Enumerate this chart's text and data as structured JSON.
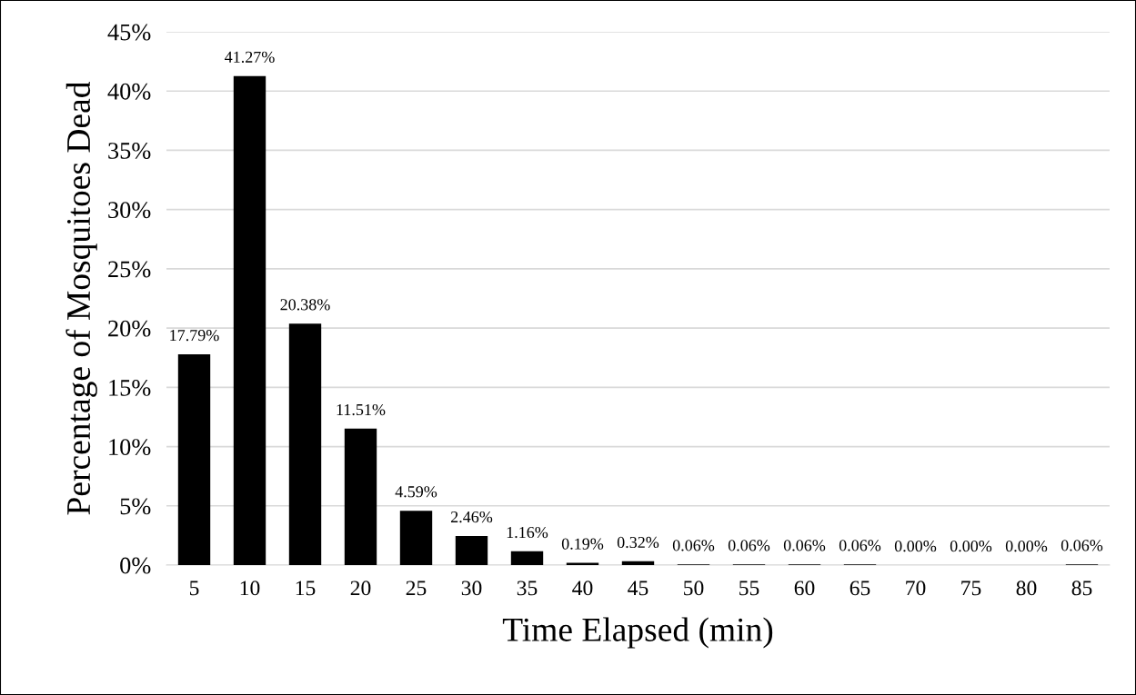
{
  "chart_data": {
    "type": "bar",
    "xlabel": "Time Elapsed (min)",
    "ylabel": "Percentage of Mosquitoes Dead",
    "categories": [
      "5",
      "10",
      "15",
      "20",
      "25",
      "30",
      "35",
      "40",
      "45",
      "50",
      "55",
      "60",
      "65",
      "70",
      "75",
      "80",
      "85"
    ],
    "values": [
      17.79,
      41.27,
      20.38,
      11.51,
      4.59,
      2.46,
      1.16,
      0.19,
      0.32,
      0.06,
      0.06,
      0.06,
      0.06,
      0.0,
      0.0,
      0.0,
      0.06
    ],
    "value_labels": [
      "17.79%",
      "41.27%",
      "20.38%",
      "11.51%",
      "4.59%",
      "2.46%",
      "1.16%",
      "0.19%",
      "0.32%",
      "0.06%",
      "0.06%",
      "0.06%",
      "0.06%",
      "0.00%",
      "0.00%",
      "0.00%",
      "0.06%"
    ],
    "color": "#000000",
    "ylim": [
      0,
      45
    ],
    "yticks": [
      {
        "value": 0,
        "label": "0%"
      },
      {
        "value": 5,
        "label": "5%"
      },
      {
        "value": 10,
        "label": "10%"
      },
      {
        "value": 15,
        "label": "15%"
      },
      {
        "value": 20,
        "label": "20%"
      },
      {
        "value": 25,
        "label": "25%"
      },
      {
        "value": 30,
        "label": "30%"
      },
      {
        "value": 35,
        "label": "35%"
      },
      {
        "value": 40,
        "label": "40%"
      },
      {
        "value": 45,
        "label": "45%"
      }
    ],
    "grid": "y",
    "legend": false
  }
}
